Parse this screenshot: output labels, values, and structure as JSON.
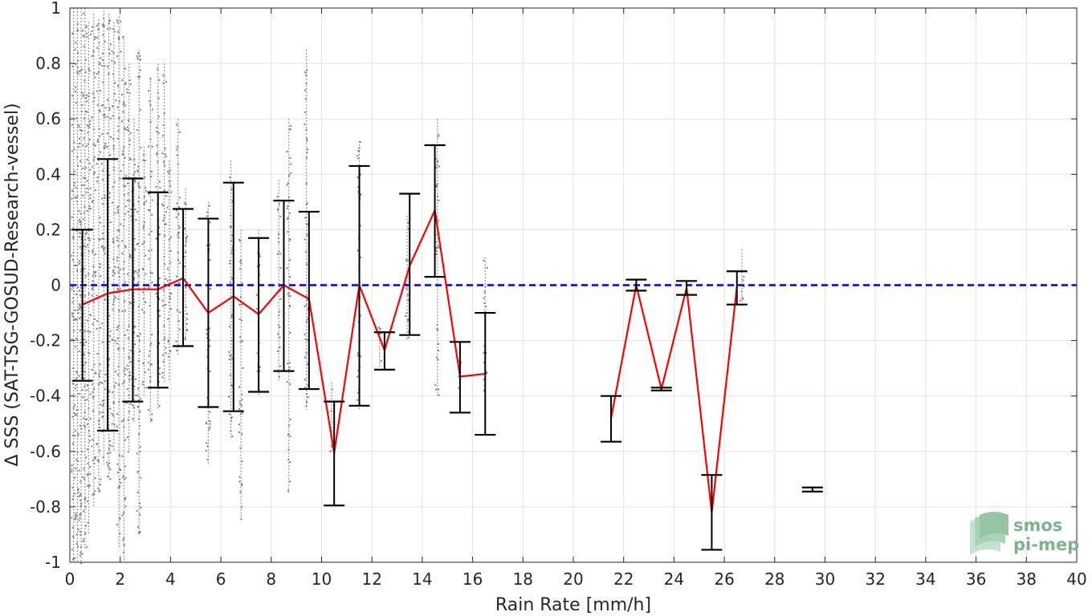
{
  "chart_data": {
    "type": "scatter",
    "title": "",
    "xlabel": "Rain Rate [mm/h]",
    "ylabel": "Δ SSS (SAT-TSG-GOSUD-Research-vessel)",
    "xlim": [
      0,
      40
    ],
    "ylim": [
      -1,
      1
    ],
    "xticks": [
      "0",
      "2",
      "4",
      "6",
      "8",
      "10",
      "12",
      "14",
      "16",
      "18",
      "20",
      "22",
      "24",
      "26",
      "28",
      "30",
      "32",
      "34",
      "36",
      "38",
      "40"
    ],
    "yticks": [
      "-1",
      "-0.8",
      "-0.6",
      "-0.4",
      "-0.2",
      "0",
      "0.2",
      "0.4",
      "0.6",
      "0.8",
      "1"
    ],
    "grid": true,
    "reference_line": {
      "y": 0,
      "style": "dashed",
      "color": "#0000e0"
    },
    "series": [
      {
        "kind": "scatter",
        "color": "#808080",
        "columns": [
          {
            "x": 0.15,
            "min": -1.0,
            "max": 1.0
          },
          {
            "x": 0.3,
            "min": -1.0,
            "max": 1.0
          },
          {
            "x": 0.45,
            "min": -1.0,
            "max": 1.0
          },
          {
            "x": 0.6,
            "min": -0.95,
            "max": 1.0
          },
          {
            "x": 0.75,
            "min": -0.9,
            "max": 0.95
          },
          {
            "x": 0.95,
            "min": -0.8,
            "max": 0.98
          },
          {
            "x": 1.15,
            "min": -0.75,
            "max": 0.96
          },
          {
            "x": 1.35,
            "min": -0.65,
            "max": 0.99
          },
          {
            "x": 1.55,
            "min": -0.7,
            "max": 0.98
          },
          {
            "x": 1.75,
            "min": -0.6,
            "max": 0.95
          },
          {
            "x": 1.95,
            "min": -0.95,
            "max": 0.97
          },
          {
            "x": 2.15,
            "min": -1.0,
            "max": 0.9
          },
          {
            "x": 2.35,
            "min": -0.6,
            "max": 0.8
          },
          {
            "x": 2.55,
            "min": -0.5,
            "max": 0.6
          },
          {
            "x": 2.75,
            "min": -0.9,
            "max": 0.85
          },
          {
            "x": 2.95,
            "min": -0.4,
            "max": 0.5
          },
          {
            "x": 3.2,
            "min": -0.5,
            "max": 0.75
          },
          {
            "x": 3.5,
            "min": -0.45,
            "max": 0.8
          },
          {
            "x": 3.75,
            "min": -0.35,
            "max": 0.8
          },
          {
            "x": 3.95,
            "min": -0.35,
            "max": 0.45
          },
          {
            "x": 4.3,
            "min": -0.25,
            "max": 0.6
          },
          {
            "x": 4.6,
            "min": -0.2,
            "max": 0.35
          },
          {
            "x": 5.5,
            "min": -0.65,
            "max": 0.3
          },
          {
            "x": 6.4,
            "min": -0.55,
            "max": 0.45
          },
          {
            "x": 6.8,
            "min": -0.85,
            "max": 0.2
          },
          {
            "x": 7.5,
            "min": -0.4,
            "max": 0.2
          },
          {
            "x": 8.3,
            "min": -0.35,
            "max": 0.38
          },
          {
            "x": 8.7,
            "min": -0.75,
            "max": 0.6
          },
          {
            "x": 9.4,
            "min": -0.45,
            "max": 0.85
          },
          {
            "x": 10.4,
            "min": -0.6,
            "max": -0.35
          },
          {
            "x": 11.5,
            "min": -0.45,
            "max": 0.52
          },
          {
            "x": 12.3,
            "min": -0.3,
            "max": -0.15
          },
          {
            "x": 13.4,
            "min": -0.2,
            "max": 0.25
          },
          {
            "x": 14.6,
            "min": -0.4,
            "max": 0.6
          },
          {
            "x": 15.5,
            "min": -0.38,
            "max": -0.25
          },
          {
            "x": 16.5,
            "min": -0.4,
            "max": 0.1
          },
          {
            "x": 22.5,
            "min": -0.03,
            "max": 0.02
          },
          {
            "x": 26.7,
            "min": -0.06,
            "max": 0.13
          }
        ]
      },
      {
        "kind": "line",
        "color": "#ff0000",
        "segments": [
          [
            [
              0.5,
              -0.07
            ],
            [
              1.5,
              -0.03
            ],
            [
              2.5,
              -0.015
            ],
            [
              3.5,
              -0.015
            ],
            [
              4.5,
              0.025
            ],
            [
              5.5,
              -0.1
            ],
            [
              6.5,
              -0.04
            ],
            [
              7.5,
              -0.105
            ],
            [
              8.5,
              0.0
            ],
            [
              9.5,
              -0.05
            ],
            [
              10.5,
              -0.605
            ],
            [
              11.5,
              0.0
            ],
            [
              12.5,
              -0.235
            ],
            [
              13.5,
              0.07
            ],
            [
              14.5,
              0.27
            ],
            [
              15.5,
              -0.33
            ],
            [
              16.5,
              -0.32
            ]
          ],
          [
            [
              21.5,
              -0.48
            ],
            [
              22.5,
              0.0
            ],
            [
              23.5,
              -0.375
            ],
            [
              24.5,
              -0.01
            ],
            [
              25.5,
              -0.82
            ],
            [
              26.5,
              -0.005
            ]
          ]
        ]
      },
      {
        "kind": "errorbar",
        "color": "#000000",
        "bars": [
          {
            "x": 0.5,
            "low": -0.345,
            "high": 0.2
          },
          {
            "x": 1.5,
            "low": -0.525,
            "high": 0.455
          },
          {
            "x": 2.5,
            "low": -0.42,
            "high": 0.385
          },
          {
            "x": 3.5,
            "low": -0.37,
            "high": 0.335
          },
          {
            "x": 4.5,
            "low": -0.22,
            "high": 0.275
          },
          {
            "x": 5.5,
            "low": -0.44,
            "high": 0.24
          },
          {
            "x": 6.5,
            "low": -0.455,
            "high": 0.37
          },
          {
            "x": 7.5,
            "low": -0.385,
            "high": 0.17
          },
          {
            "x": 8.5,
            "low": -0.31,
            "high": 0.305
          },
          {
            "x": 9.5,
            "low": -0.375,
            "high": 0.265
          },
          {
            "x": 10.5,
            "low": -0.795,
            "high": -0.42
          },
          {
            "x": 11.5,
            "low": -0.435,
            "high": 0.43
          },
          {
            "x": 12.5,
            "low": -0.305,
            "high": -0.17
          },
          {
            "x": 13.5,
            "low": -0.18,
            "high": 0.33
          },
          {
            "x": 14.5,
            "low": 0.03,
            "high": 0.505
          },
          {
            "x": 15.5,
            "low": -0.46,
            "high": -0.205
          },
          {
            "x": 16.5,
            "low": -0.54,
            "high": -0.1
          },
          {
            "x": 21.5,
            "low": -0.565,
            "high": -0.4
          },
          {
            "x": 22.5,
            "low": -0.02,
            "high": 0.02
          },
          {
            "x": 23.5,
            "low": -0.38,
            "high": -0.37
          },
          {
            "x": 24.5,
            "low": -0.035,
            "high": 0.015
          },
          {
            "x": 25.5,
            "low": -0.955,
            "high": -0.685
          },
          {
            "x": 26.5,
            "low": -0.07,
            "high": 0.05
          },
          {
            "x": 29.5,
            "low": -0.745,
            "high": -0.73
          }
        ]
      }
    ]
  },
  "logo": {
    "line1": "smos",
    "line2": "pi-mep",
    "color": "#7fb38f"
  }
}
